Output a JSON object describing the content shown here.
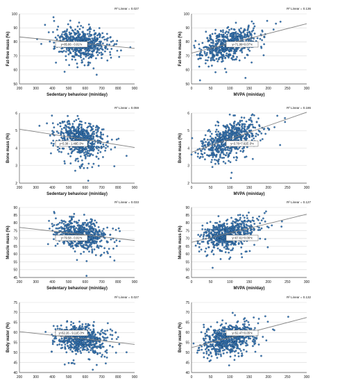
{
  "chart_data": [
    {
      "type": "scatter",
      "xlabel": "Sedentary behaviour (min/day)",
      "ylabel": "Fat-free mass (%)",
      "xlim": [
        200,
        900
      ],
      "ylim": [
        50,
        100
      ],
      "xticks": [
        "200",
        "300",
        "400",
        "500",
        "600",
        "700",
        "800",
        "900"
      ],
      "yticks": [
        "50",
        "60",
        "70",
        "80",
        "90",
        "100"
      ],
      "r2": "R² Linear = 0.027",
      "equation": "y=85.86 - 0.01*x",
      "fit": {
        "slope": -0.0116,
        "intercept": 85.86
      },
      "cloud": {
        "cx": 570,
        "sx": 75,
        "cy": 79,
        "sy": 5
      },
      "grid": true
    },
    {
      "type": "scatter",
      "xlabel": "MVPA (min/day)",
      "ylabel": "Fat-free mass (%)",
      "xlim": [
        0,
        300
      ],
      "ylim": [
        50,
        100
      ],
      "xticks": [
        "0",
        "50",
        "100",
        "150",
        "200",
        "250",
        "300"
      ],
      "yticks": [
        "50",
        "60",
        "70",
        "80",
        "90",
        "100"
      ],
      "r2": "R² Linear = 0.136",
      "equation": "y=71.99+0.07*x",
      "fit": {
        "slope": 0.07,
        "intercept": 71.99
      },
      "cloud": {
        "cx": 95,
        "sx": 35,
        "cy": 79,
        "sy": 5
      },
      "grid": true
    },
    {
      "type": "scatter",
      "xlabel": "Sedentary behaviour (min/day)",
      "ylabel": "Bone mass (%)",
      "xlim": [
        200,
        900
      ],
      "ylim": [
        2.0,
        6.0
      ],
      "xticks": [
        "200",
        "300",
        "400",
        "500",
        "600",
        "700",
        "800",
        "900"
      ],
      "yticks": [
        "2",
        "3",
        "4",
        "5",
        "6"
      ],
      "r2": "R² Linear = 0.059",
      "equation": "y=5.38 - 1.49E-3*x",
      "fit": {
        "slope": -0.00149,
        "intercept": 5.38
      },
      "cloud": {
        "cx": 570,
        "sx": 75,
        "cy": 4.5,
        "sy": 0.45
      },
      "grid": true
    },
    {
      "type": "scatter",
      "xlabel": "MVPA (min/day)",
      "ylabel": "Bone mass (%)",
      "xlim": [
        0,
        300
      ],
      "ylim": [
        2.0,
        6.0
      ],
      "xticks": [
        "0",
        "50",
        "100",
        "150",
        "200",
        "250",
        "300"
      ],
      "yticks": [
        "2",
        "3",
        "4",
        "5",
        "6"
      ],
      "r2": "R² Linear = 0.186",
      "equation": "y=3.76+7.62E-3*x",
      "fit": {
        "slope": 0.00762,
        "intercept": 3.76
      },
      "cloud": {
        "cx": 95,
        "sx": 35,
        "cy": 4.5,
        "sy": 0.45
      },
      "grid": true
    },
    {
      "type": "scatter",
      "xlabel": "Sedentary behaviour (min/day)",
      "ylabel": "Muscle mass (%)",
      "xlim": [
        200,
        900
      ],
      "ylim": [
        45,
        90
      ],
      "xticks": [
        "200",
        "300",
        "400",
        "500",
        "600",
        "700",
        "800",
        "900"
      ],
      "yticks": [
        "45",
        "50",
        "55",
        "60",
        "65",
        "70",
        "75",
        "80",
        "85",
        "90"
      ],
      "r2": "R² Linear = 0.033",
      "equation": "y=79.58 - 0.01*x",
      "fit": {
        "slope": -0.012,
        "intercept": 79.58
      },
      "cloud": {
        "cx": 570,
        "sx": 75,
        "cy": 72.5,
        "sy": 4.5
      },
      "grid": true
    },
    {
      "type": "scatter",
      "xlabel": "MVPA (min/day)",
      "ylabel": "Muscle mass (%)",
      "xlim": [
        0,
        300
      ],
      "ylim": [
        45,
        90
      ],
      "xticks": [
        "0",
        "50",
        "100",
        "150",
        "200",
        "250",
        "300"
      ],
      "yticks": [
        "45",
        "50",
        "55",
        "60",
        "65",
        "70",
        "75",
        "80",
        "85",
        "90"
      ],
      "r2": "R² Linear = 0.127",
      "equation": "y=67.61+0.06*x",
      "fit": {
        "slope": 0.06,
        "intercept": 67.61
      },
      "cloud": {
        "cx": 95,
        "sx": 35,
        "cy": 73,
        "sy": 4.5
      },
      "grid": true
    },
    {
      "type": "scatter",
      "xlabel": "Sedentary behaviour (min/day)",
      "ylabel": "Body water (%)",
      "xlim": [
        200,
        900
      ],
      "ylim": [
        40,
        75
      ],
      "xticks": [
        "200",
        "300",
        "400",
        "500",
        "600",
        "700",
        "800",
        "900"
      ],
      "yticks": [
        "40",
        "45",
        "50",
        "55",
        "60",
        "65",
        "70",
        "75"
      ],
      "r2": "R² Linear = 0.027",
      "equation": "y=62.26 - 9.11E-3*x",
      "fit": {
        "slope": -0.00911,
        "intercept": 62.26
      },
      "cloud": {
        "cx": 570,
        "sx": 75,
        "cy": 57,
        "sy": 3.5
      },
      "grid": true
    },
    {
      "type": "scatter",
      "xlabel": "MVPA (min/day)",
      "ylabel": "Body water (%)",
      "xlim": [
        0,
        300
      ],
      "ylim": [
        40,
        75
      ],
      "xticks": [
        "0",
        "50",
        "100",
        "150",
        "200",
        "250",
        "300"
      ],
      "yticks": [
        "40",
        "45",
        "50",
        "55",
        "60",
        "65",
        "70",
        "75"
      ],
      "r2": "R² Linear = 0.132",
      "equation": "y=52.47+0.05*x",
      "fit": {
        "slope": 0.05,
        "intercept": 52.47
      },
      "cloud": {
        "cx": 95,
        "sx": 35,
        "cy": 57,
        "sy": 3.5
      },
      "grid": true
    }
  ],
  "colors": {
    "point_fill": "#3f7fbf",
    "point_stroke": "#10365c",
    "fit_line": "#808080",
    "grid": "#d9d9d9",
    "axis": "#555555",
    "text": "#111111"
  }
}
